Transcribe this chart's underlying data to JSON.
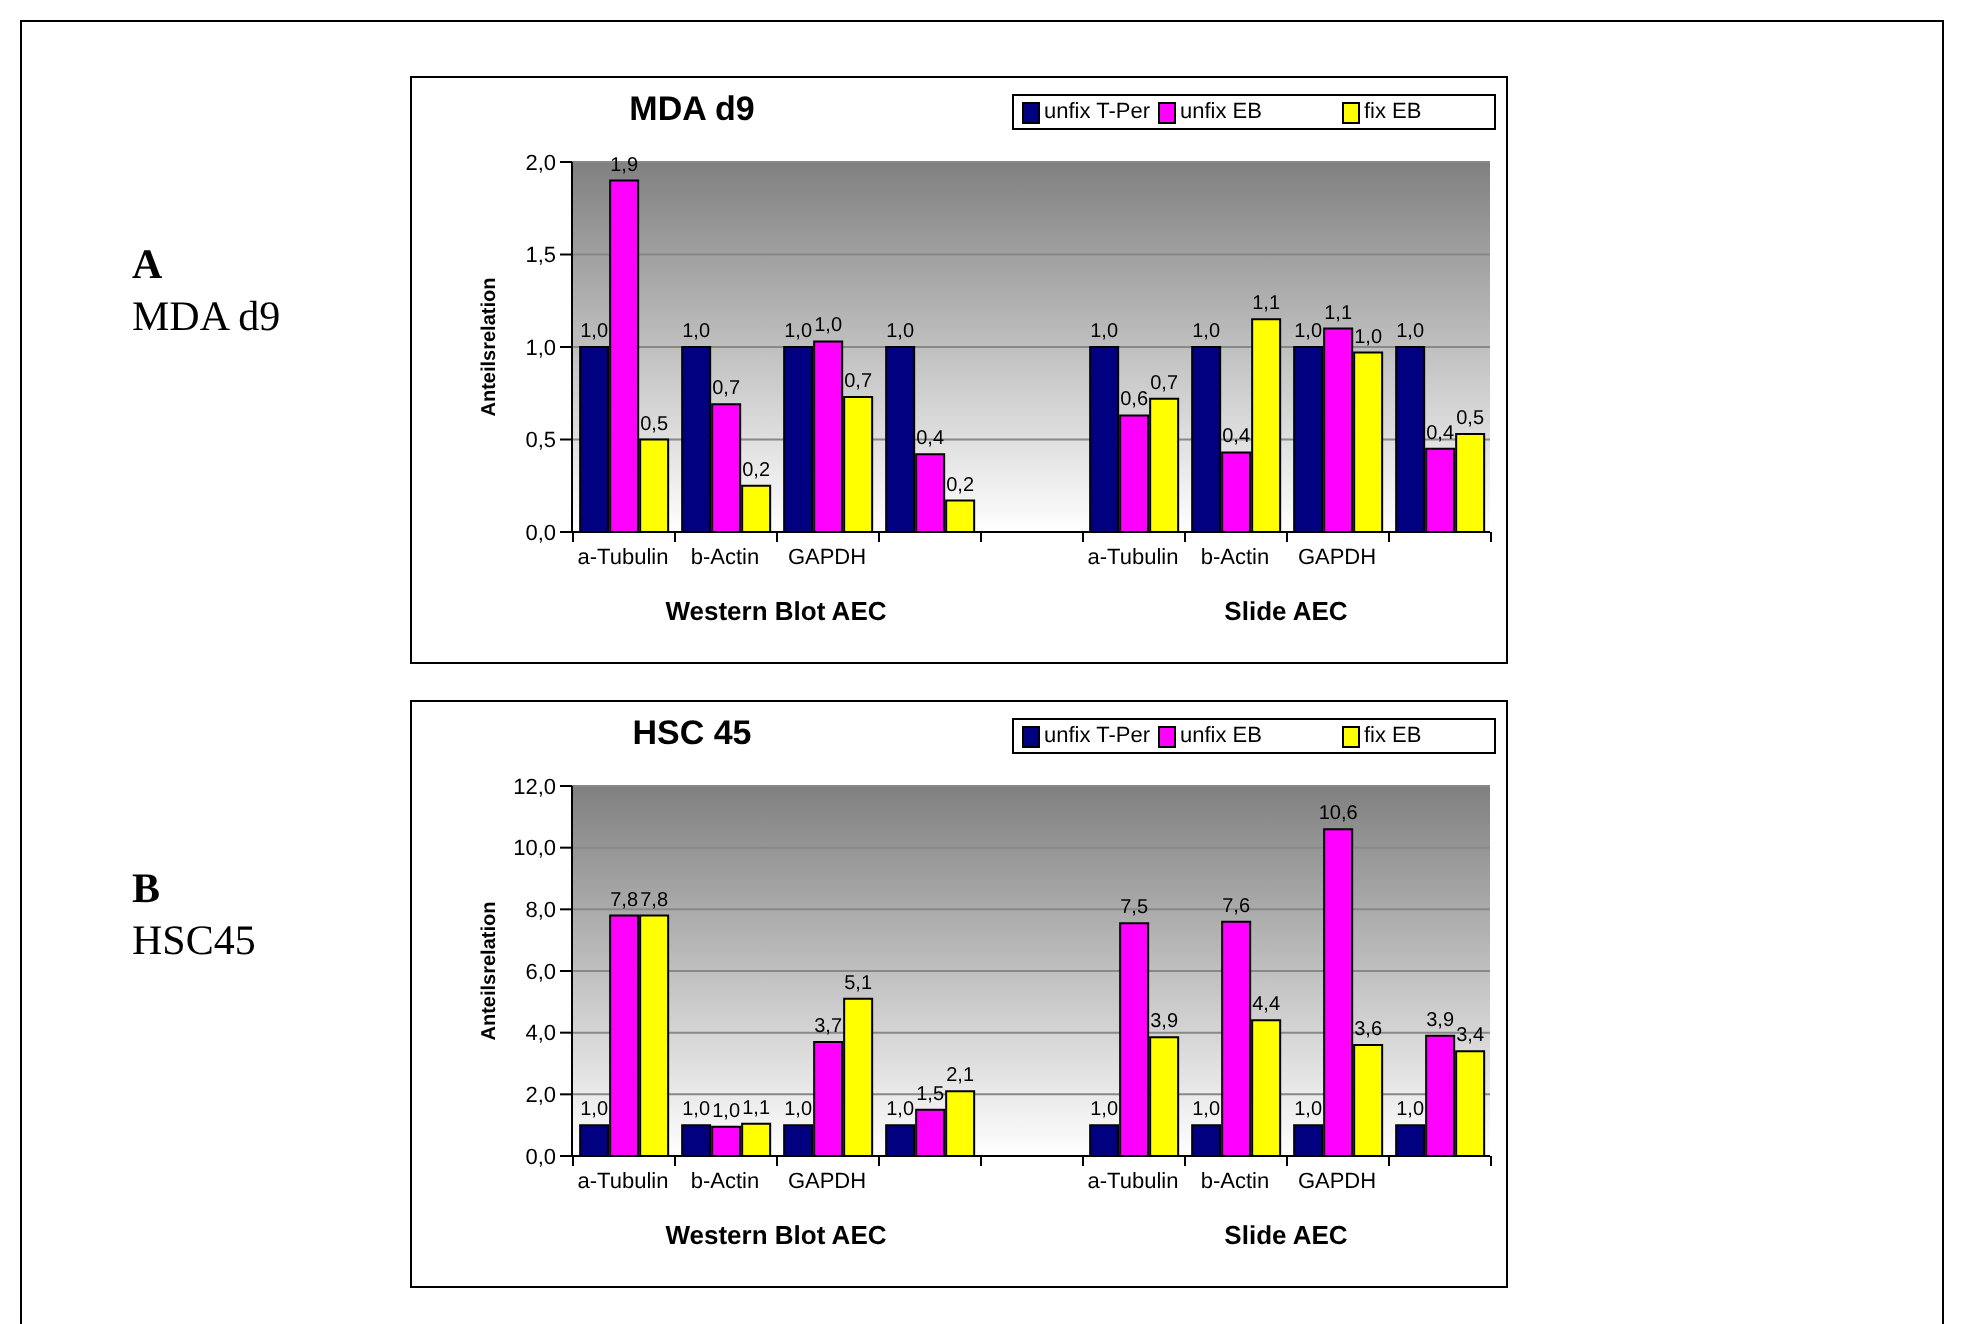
{
  "chart_data": [
    {
      "type": "bar",
      "title": "MDA d9",
      "ylabel": "Anteilsrelation",
      "categories": [
        "a-Tubulin",
        "b-Actin",
        "GAPDH",
        null,
        null,
        "a-Tubulin",
        "b-Actin",
        "GAPDH",
        null
      ],
      "series": [
        {
          "name": "unfix T-Per",
          "color": "#000080",
          "values": [
            1.0,
            1.0,
            1.0,
            1.0,
            null,
            1.0,
            1.0,
            1.0,
            1.0
          ],
          "value_labels": [
            "1,0",
            "1,0",
            "1,0",
            "1,0",
            null,
            "1,0",
            "1,0",
            "1,0",
            "1,0"
          ]
        },
        {
          "name": "unfix EB",
          "color": "#ff00ff",
          "values": [
            1.9,
            0.69,
            1.03,
            0.42,
            null,
            0.63,
            0.43,
            1.1,
            0.45
          ],
          "value_labels": [
            "1,9",
            "0,7",
            "1,0",
            "0,4",
            null,
            "0,6",
            "0,4",
            "1,1",
            "0,4"
          ]
        },
        {
          "name": "fix EB",
          "color": "#ffff00",
          "values": [
            0.5,
            0.25,
            0.73,
            0.17,
            null,
            0.72,
            1.15,
            0.97,
            0.53
          ],
          "value_labels": [
            "0,5",
            "0,2",
            "0,7",
            "0,2",
            null,
            "0,7",
            "1,1",
            "1,0",
            "0,5"
          ]
        }
      ],
      "ylim": [
        0,
        2
      ],
      "yticks": [
        {
          "value": 0,
          "label": "0,0"
        },
        {
          "value": 0.5,
          "label": "0,5"
        },
        {
          "value": 1,
          "label": "1,0"
        },
        {
          "value": 1.5,
          "label": "1,5"
        },
        {
          "value": 2,
          "label": "2,0"
        }
      ],
      "grid": "y",
      "legend": "top",
      "annotations": [
        "Western Blot AEC",
        "Slide AEC",
        "A",
        "MDA d9"
      ]
    },
    {
      "type": "bar",
      "title": "HSC 45",
      "ylabel": "Anteilsrelation",
      "categories": [
        "a-Tubulin",
        "b-Actin",
        "GAPDH",
        null,
        null,
        "a-Tubulin",
        "b-Actin",
        "GAPDH",
        null
      ],
      "series": [
        {
          "name": "unfix T-Per",
          "color": "#000080",
          "values": [
            1.0,
            1.0,
            1.0,
            1.0,
            null,
            1.0,
            1.0,
            1.0,
            1.0
          ],
          "value_labels": [
            "1,0",
            "1,0",
            "1,0",
            "1,0",
            null,
            "1,0",
            "1,0",
            "1,0",
            "1,0"
          ]
        },
        {
          "name": "unfix EB",
          "color": "#ff00ff",
          "values": [
            7.8,
            0.95,
            3.7,
            1.5,
            null,
            7.55,
            7.6,
            10.6,
            3.9
          ],
          "value_labels": [
            "7,8",
            "1,0",
            "3,7",
            "1,5",
            null,
            "7,5",
            "7,6",
            "10,6",
            "3,9"
          ]
        },
        {
          "name": "fix EB",
          "color": "#ffff00",
          "values": [
            7.8,
            1.05,
            5.1,
            2.1,
            null,
            3.85,
            4.4,
            3.6,
            3.4
          ],
          "value_labels": [
            "7,8",
            "1,1",
            "5,1",
            "2,1",
            null,
            "3,9",
            "4,4",
            "3,6",
            "3,4"
          ]
        }
      ],
      "ylim": [
        0,
        12
      ],
      "yticks": [
        {
          "value": 0,
          "label": "0,0"
        },
        {
          "value": 2,
          "label": "2,0"
        },
        {
          "value": 4,
          "label": "4,0"
        },
        {
          "value": 6,
          "label": "6,0"
        },
        {
          "value": 8,
          "label": "8,0"
        },
        {
          "value": 10,
          "label": "10,0"
        },
        {
          "value": 12,
          "label": "12,0"
        }
      ],
      "grid": "y",
      "legend": "top",
      "annotations": [
        "Western Blot AEC",
        "Slide AEC",
        "B",
        "HSC45"
      ]
    }
  ]
}
